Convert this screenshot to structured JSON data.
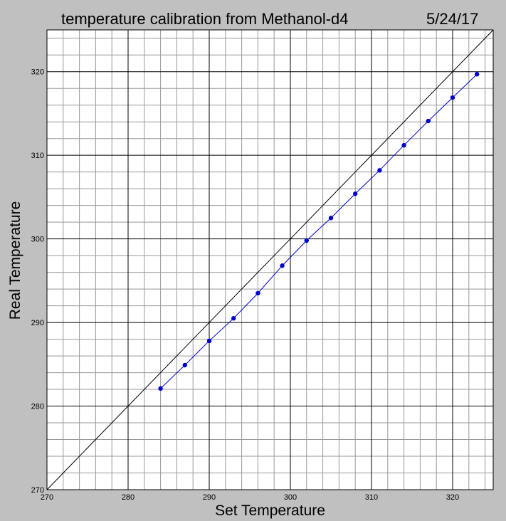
{
  "chart_data": {
    "type": "line",
    "title": "temperature calibration from Methanol-d4",
    "date": "5/24/17",
    "xlabel": "Set Temperature",
    "ylabel": "Real Temperature",
    "xlim": [
      270,
      325
    ],
    "ylim": [
      270,
      325
    ],
    "major_step": 10,
    "minor_step": 2,
    "xticks": [
      "270",
      "280",
      "290",
      "300",
      "310",
      "320"
    ],
    "yticks": [
      "270",
      "280",
      "290",
      "300",
      "310",
      "320"
    ],
    "grid": true,
    "reference_line": "y = x",
    "series": [
      {
        "color": "#0000cc",
        "x": [
          284,
          287,
          290,
          293,
          296,
          299,
          302,
          305,
          308,
          311,
          314,
          317,
          320,
          323
        ],
        "y": [
          282.1,
          284.9,
          287.8,
          290.5,
          293.5,
          296.8,
          299.8,
          302.5,
          305.4,
          308.2,
          311.2,
          314.1,
          316.9,
          319.7
        ]
      }
    ],
    "colors": {
      "background": "#c0c0c0",
      "plot_area": "#ffffff",
      "major_grid": "#000000",
      "minor_grid": "#999999",
      "series": "#0000cc"
    }
  }
}
